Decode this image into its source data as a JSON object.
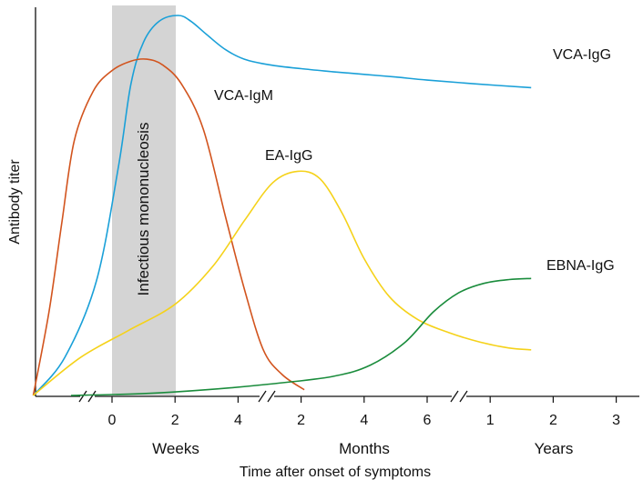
{
  "chart_data": {
    "type": "line",
    "xlabel": "Time after onset of symptoms",
    "ylabel": "Antibody titer",
    "shaded_band": {
      "label": "Infectious mononucleosis",
      "x_range": [
        "0 weeks",
        "2 weeks"
      ],
      "color": "#d4d4d4"
    },
    "x_segments": [
      {
        "unit": "Weeks",
        "ticks": [
          "0",
          "2",
          "4"
        ]
      },
      {
        "unit": "Months",
        "ticks": [
          "2",
          "4",
          "6"
        ]
      },
      {
        "unit": "Years",
        "ticks": [
          "1",
          "2",
          "3"
        ]
      }
    ],
    "axis_breaks": 3,
    "series": [
      {
        "name": "VCA-IgG",
        "color": "#1aa0d8",
        "points": [
          [
            -2.5,
            0
          ],
          [
            -1.5,
            0.1
          ],
          [
            -0.5,
            0.3
          ],
          [
            0.2,
            0.6
          ],
          [
            0.6,
            0.82
          ],
          [
            1.0,
            0.93
          ],
          [
            1.5,
            0.985
          ],
          [
            2.1,
            1.0
          ],
          [
            2.5,
            0.985
          ],
          [
            3.0,
            0.95
          ],
          [
            3.6,
            0.91
          ],
          [
            4.2,
            0.885
          ],
          [
            5.0,
            0.87
          ],
          [
            6.0,
            0.86
          ],
          [
            7.0,
            0.852
          ],
          [
            8.0,
            0.845
          ],
          [
            9.0,
            0.838
          ],
          [
            10.0,
            0.83
          ],
          [
            11.5,
            0.82
          ],
          [
            13.3,
            0.81
          ]
        ]
      },
      {
        "name": "VCA-IgM",
        "color": "#d2541e",
        "points": [
          [
            -2.5,
            0
          ],
          [
            -2.0,
            0.22
          ],
          [
            -1.6,
            0.45
          ],
          [
            -1.2,
            0.67
          ],
          [
            -0.6,
            0.8
          ],
          [
            0,
            0.855
          ],
          [
            0.6,
            0.88
          ],
          [
            1.1,
            0.885
          ],
          [
            1.6,
            0.87
          ],
          [
            2.2,
            0.82
          ],
          [
            2.9,
            0.7
          ],
          [
            3.6,
            0.47
          ],
          [
            4.2,
            0.28
          ],
          [
            4.8,
            0.12
          ],
          [
            5.4,
            0.055
          ],
          [
            6.1,
            0.015
          ]
        ]
      },
      {
        "name": "EA-IgG",
        "color": "#f5d21a",
        "points": [
          [
            -2.5,
            0
          ],
          [
            -1.0,
            0.1
          ],
          [
            0.5,
            0.17
          ],
          [
            2.0,
            0.24
          ],
          [
            3.2,
            0.34
          ],
          [
            4.2,
            0.46
          ],
          [
            5.1,
            0.56
          ],
          [
            5.9,
            0.59
          ],
          [
            6.6,
            0.57
          ],
          [
            7.3,
            0.48
          ],
          [
            8.0,
            0.36
          ],
          [
            8.8,
            0.26
          ],
          [
            9.7,
            0.2
          ],
          [
            10.7,
            0.165
          ],
          [
            11.7,
            0.14
          ],
          [
            12.6,
            0.125
          ],
          [
            13.3,
            0.12
          ]
        ]
      },
      {
        "name": "EBNA-IgG",
        "color": "#1a8c3c",
        "points": [
          [
            -1.3,
            0
          ],
          [
            1.0,
            0.005
          ],
          [
            3.0,
            0.015
          ],
          [
            5.0,
            0.03
          ],
          [
            7.0,
            0.05
          ],
          [
            8.2,
            0.08
          ],
          [
            9.3,
            0.14
          ],
          [
            10.2,
            0.22
          ],
          [
            11.0,
            0.27
          ],
          [
            11.8,
            0.295
          ],
          [
            12.6,
            0.305
          ],
          [
            13.3,
            0.308
          ]
        ]
      }
    ]
  }
}
